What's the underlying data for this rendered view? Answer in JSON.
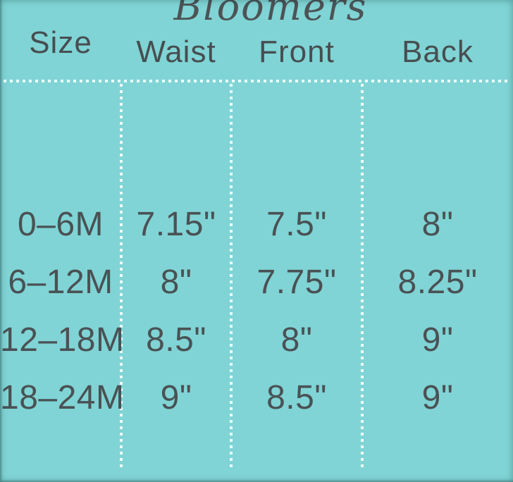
{
  "colors": {
    "background": "#80d4d5",
    "text": "#4a5154",
    "grid_dots": "#f2feff"
  },
  "chart_data": {
    "type": "table",
    "title": "Bloomers",
    "columns": [
      "Size",
      "Waist",
      "Front",
      "Back"
    ],
    "rows": [
      [
        "0–6M",
        "7.15\"",
        "7.5\"",
        "8\""
      ],
      [
        "6–12M",
        "8\"",
        "7.75\"",
        "8.25\""
      ],
      [
        "12–18M",
        "8.5\"",
        "8\"",
        "9\""
      ],
      [
        "18–24M",
        "9\"",
        "8.5\"",
        "9\""
      ]
    ],
    "layout": {
      "grid": "dotted white lines; 1 horizontal rule under header, 3 vertical column separators",
      "legend_position": "none"
    }
  }
}
